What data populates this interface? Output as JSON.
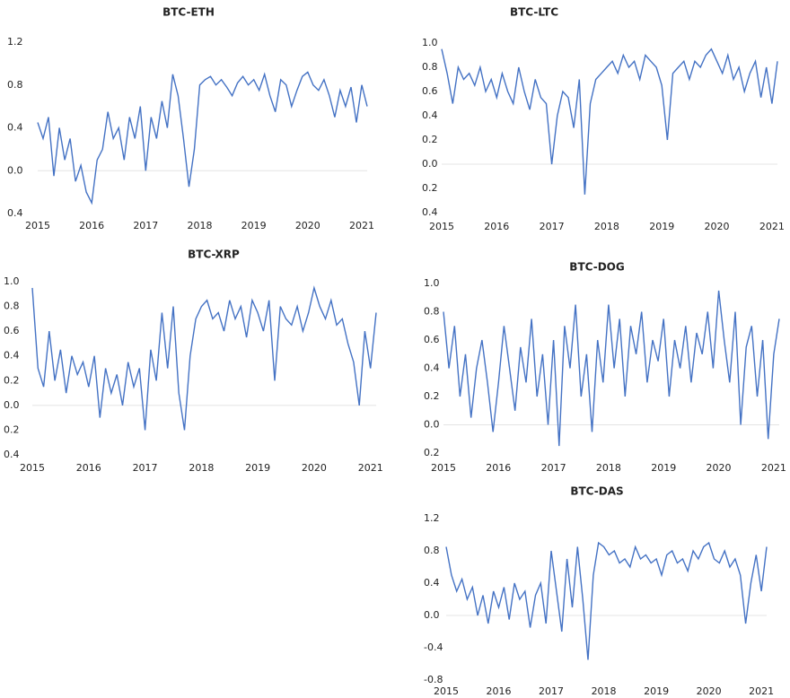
{
  "chart_data": [
    {
      "type": "line",
      "title": "BTC-ETH",
      "color": "#4472c4",
      "x": [
        2015.0,
        2015.1,
        2015.2,
        2015.3,
        2015.4,
        2015.5,
        2015.6,
        2015.7,
        2015.8,
        2015.9,
        2016.0,
        2016.1,
        2016.2,
        2016.3,
        2016.4,
        2016.5,
        2016.6,
        2016.7,
        2016.8,
        2016.9,
        2017.0,
        2017.1,
        2017.2,
        2017.3,
        2017.4,
        2017.5,
        2017.6,
        2017.7,
        2017.8,
        2017.9,
        2018.0,
        2018.1,
        2018.2,
        2018.3,
        2018.4,
        2018.5,
        2018.6,
        2018.7,
        2018.8,
        2018.9,
        2019.0,
        2019.1,
        2019.2,
        2019.3,
        2019.4,
        2019.5,
        2019.6,
        2019.7,
        2019.8,
        2019.9,
        2020.0,
        2020.1,
        2020.2,
        2020.3,
        2020.4,
        2020.5,
        2020.6,
        2020.7,
        2020.8,
        2020.9,
        2021.0,
        2021.1
      ],
      "values": [
        0.45,
        0.3,
        0.5,
        -0.05,
        0.4,
        0.1,
        0.3,
        -0.1,
        0.05,
        -0.2,
        -0.3,
        0.1,
        0.2,
        0.55,
        0.3,
        0.4,
        0.1,
        0.5,
        0.3,
        0.6,
        0.0,
        0.5,
        0.3,
        0.65,
        0.4,
        0.9,
        0.7,
        0.3,
        -0.15,
        0.2,
        0.8,
        0.85,
        0.88,
        0.8,
        0.85,
        0.78,
        0.7,
        0.82,
        0.88,
        0.8,
        0.85,
        0.75,
        0.9,
        0.7,
        0.55,
        0.85,
        0.8,
        0.6,
        0.75,
        0.88,
        0.92,
        0.8,
        0.75,
        0.85,
        0.7,
        0.5,
        0.75,
        0.6,
        0.78,
        0.45,
        0.8,
        0.6
      ],
      "xlim": [
        2015,
        2021.1
      ],
      "xticks": [
        2015,
        2016,
        2017,
        2018,
        2019,
        2020,
        2021
      ],
      "ylim": [
        -0.4,
        1.2
      ],
      "yticks": [
        1.2,
        0.8,
        0.4,
        {
          "value": 0,
          "label": "0.0"
        },
        {
          "value": -0.4,
          "label": "0.4"
        }
      ]
    },
    {
      "type": "line",
      "title": "BTC-LTC",
      "color": "#4472c4",
      "x": [
        2015.0,
        2015.1,
        2015.2,
        2015.3,
        2015.4,
        2015.5,
        2015.6,
        2015.7,
        2015.8,
        2015.9,
        2016.0,
        2016.1,
        2016.2,
        2016.3,
        2016.4,
        2016.5,
        2016.6,
        2016.7,
        2016.8,
        2016.9,
        2017.0,
        2017.1,
        2017.2,
        2017.3,
        2017.4,
        2017.5,
        2017.6,
        2017.7,
        2017.8,
        2017.9,
        2018.0,
        2018.1,
        2018.2,
        2018.3,
        2018.4,
        2018.5,
        2018.6,
        2018.7,
        2018.8,
        2018.9,
        2019.0,
        2019.1,
        2019.2,
        2019.3,
        2019.4,
        2019.5,
        2019.6,
        2019.7,
        2019.8,
        2019.9,
        2020.0,
        2020.1,
        2020.2,
        2020.3,
        2020.4,
        2020.5,
        2020.6,
        2020.7,
        2020.8,
        2020.9,
        2021.0,
        2021.1
      ],
      "values": [
        0.95,
        0.75,
        0.5,
        0.8,
        0.7,
        0.75,
        0.65,
        0.8,
        0.6,
        0.7,
        0.55,
        0.75,
        0.6,
        0.5,
        0.8,
        0.6,
        0.45,
        0.7,
        0.55,
        0.5,
        0.0,
        0.4,
        0.6,
        0.55,
        0.3,
        0.7,
        -0.25,
        0.5,
        0.7,
        0.75,
        0.8,
        0.85,
        0.75,
        0.9,
        0.8,
        0.85,
        0.7,
        0.9,
        0.85,
        0.8,
        0.65,
        0.2,
        0.75,
        0.8,
        0.85,
        0.7,
        0.85,
        0.8,
        0.9,
        0.95,
        0.85,
        0.75,
        0.9,
        0.7,
        0.8,
        0.6,
        0.75,
        0.85,
        0.55,
        0.8,
        0.5,
        0.85
      ],
      "xlim": [
        2015,
        2021.1
      ],
      "xticks": [
        2015,
        2016,
        2017,
        2018,
        2019,
        2020,
        2021
      ],
      "ylim": [
        -0.4,
        1.0
      ],
      "yticks": [
        {
          "value": 1,
          "label": "1.0"
        },
        0.8,
        0.6,
        0.4,
        0.2,
        {
          "value": 0,
          "label": "0.0"
        },
        {
          "value": -0.2,
          "label": "0.2"
        },
        {
          "value": -0.4,
          "label": "0.4"
        }
      ]
    },
    {
      "type": "line",
      "title": "BTC-XRP",
      "color": "#4472c4",
      "x": [
        2015.0,
        2015.1,
        2015.2,
        2015.3,
        2015.4,
        2015.5,
        2015.6,
        2015.7,
        2015.8,
        2015.9,
        2016.0,
        2016.1,
        2016.2,
        2016.3,
        2016.4,
        2016.5,
        2016.6,
        2016.7,
        2016.8,
        2016.9,
        2017.0,
        2017.1,
        2017.2,
        2017.3,
        2017.4,
        2017.5,
        2017.6,
        2017.7,
        2017.8,
        2017.9,
        2018.0,
        2018.1,
        2018.2,
        2018.3,
        2018.4,
        2018.5,
        2018.6,
        2018.7,
        2018.8,
        2018.9,
        2019.0,
        2019.1,
        2019.2,
        2019.3,
        2019.4,
        2019.5,
        2019.6,
        2019.7,
        2019.8,
        2019.9,
        2020.0,
        2020.1,
        2020.2,
        2020.3,
        2020.4,
        2020.5,
        2020.6,
        2020.7,
        2020.8,
        2020.9,
        2021.0,
        2021.1
      ],
      "values": [
        0.95,
        0.3,
        0.15,
        0.6,
        0.2,
        0.45,
        0.1,
        0.4,
        0.25,
        0.35,
        0.15,
        0.4,
        -0.1,
        0.3,
        0.1,
        0.25,
        0.0,
        0.35,
        0.15,
        0.3,
        -0.2,
        0.45,
        0.2,
        0.75,
        0.3,
        0.8,
        0.1,
        -0.2,
        0.4,
        0.7,
        0.8,
        0.85,
        0.7,
        0.75,
        0.6,
        0.85,
        0.7,
        0.8,
        0.55,
        0.85,
        0.75,
        0.6,
        0.85,
        0.2,
        0.8,
        0.7,
        0.65,
        0.8,
        0.6,
        0.75,
        0.95,
        0.8,
        0.7,
        0.85,
        0.65,
        0.7,
        0.5,
        0.35,
        0.0,
        0.6,
        0.3,
        0.75
      ],
      "xlim": [
        2015,
        2021.1
      ],
      "xticks": [
        2015,
        2016,
        2017,
        2018,
        2019,
        2020,
        2021
      ],
      "ylim": [
        -0.4,
        1.0
      ],
      "yticks": [
        {
          "value": 1,
          "label": "1.0"
        },
        0.8,
        0.6,
        0.4,
        0.2,
        {
          "value": 0,
          "label": "0.0"
        },
        {
          "value": -0.2,
          "label": "0.2"
        },
        {
          "value": -0.4,
          "label": "0.4"
        }
      ]
    },
    {
      "type": "line",
      "title": "BTC-DOG",
      "color": "#4472c4",
      "x": [
        2015.0,
        2015.1,
        2015.2,
        2015.3,
        2015.4,
        2015.5,
        2015.6,
        2015.7,
        2015.8,
        2015.9,
        2016.0,
        2016.1,
        2016.2,
        2016.3,
        2016.4,
        2016.5,
        2016.6,
        2016.7,
        2016.8,
        2016.9,
        2017.0,
        2017.1,
        2017.2,
        2017.3,
        2017.4,
        2017.5,
        2017.6,
        2017.7,
        2017.8,
        2017.9,
        2018.0,
        2018.1,
        2018.2,
        2018.3,
        2018.4,
        2018.5,
        2018.6,
        2018.7,
        2018.8,
        2018.9,
        2019.0,
        2019.1,
        2019.2,
        2019.3,
        2019.4,
        2019.5,
        2019.6,
        2019.7,
        2019.8,
        2019.9,
        2020.0,
        2020.1,
        2020.2,
        2020.3,
        2020.4,
        2020.5,
        2020.6,
        2020.7,
        2020.8,
        2020.9,
        2021.0,
        2021.1
      ],
      "values": [
        0.8,
        0.4,
        0.7,
        0.2,
        0.5,
        0.05,
        0.4,
        0.6,
        0.3,
        -0.05,
        0.3,
        0.7,
        0.4,
        0.1,
        0.55,
        0.3,
        0.75,
        0.2,
        0.5,
        0.0,
        0.6,
        -0.15,
        0.7,
        0.4,
        0.85,
        0.2,
        0.5,
        -0.05,
        0.6,
        0.3,
        0.85,
        0.4,
        0.75,
        0.2,
        0.7,
        0.5,
        0.8,
        0.3,
        0.6,
        0.45,
        0.75,
        0.2,
        0.6,
        0.4,
        0.7,
        0.3,
        0.65,
        0.5,
        0.8,
        0.4,
        0.95,
        0.6,
        0.3,
        0.8,
        0.0,
        0.55,
        0.7,
        0.2,
        0.6,
        -0.1,
        0.5,
        0.75
      ],
      "xlim": [
        2015,
        2021.1
      ],
      "xticks": [
        2015,
        2016,
        2017,
        2018,
        2019,
        2020,
        2021
      ],
      "ylim": [
        -0.2,
        1.0
      ],
      "yticks": [
        {
          "value": 1,
          "label": "1.0"
        },
        0.8,
        0.6,
        0.4,
        0.2,
        {
          "value": 0,
          "label": "0.0"
        },
        {
          "value": -0.2,
          "label": "0.2"
        }
      ]
    },
    {
      "type": "line",
      "title": "BTC-DAS",
      "color": "#4472c4",
      "x": [
        2015.0,
        2015.1,
        2015.2,
        2015.3,
        2015.4,
        2015.5,
        2015.6,
        2015.7,
        2015.8,
        2015.9,
        2016.0,
        2016.1,
        2016.2,
        2016.3,
        2016.4,
        2016.5,
        2016.6,
        2016.7,
        2016.8,
        2016.9,
        2017.0,
        2017.1,
        2017.2,
        2017.3,
        2017.4,
        2017.5,
        2017.6,
        2017.7,
        2017.8,
        2017.9,
        2018.0,
        2018.1,
        2018.2,
        2018.3,
        2018.4,
        2018.5,
        2018.6,
        2018.7,
        2018.8,
        2018.9,
        2019.0,
        2019.1,
        2019.2,
        2019.3,
        2019.4,
        2019.5,
        2019.6,
        2019.7,
        2019.8,
        2019.9,
        2020.0,
        2020.1,
        2020.2,
        2020.3,
        2020.4,
        2020.5,
        2020.6,
        2020.7,
        2020.8,
        2020.9,
        2021.0,
        2021.1
      ],
      "values": [
        0.85,
        0.5,
        0.3,
        0.45,
        0.2,
        0.35,
        0.0,
        0.25,
        -0.1,
        0.3,
        0.1,
        0.35,
        -0.05,
        0.4,
        0.2,
        0.3,
        -0.15,
        0.25,
        0.4,
        -0.1,
        0.8,
        0.3,
        -0.2,
        0.7,
        0.1,
        0.85,
        0.2,
        -0.55,
        0.5,
        0.9,
        0.85,
        0.75,
        0.8,
        0.65,
        0.7,
        0.6,
        0.85,
        0.7,
        0.75,
        0.65,
        0.7,
        0.5,
        0.75,
        0.8,
        0.65,
        0.7,
        0.55,
        0.8,
        0.7,
        0.85,
        0.9,
        0.7,
        0.65,
        0.8,
        0.6,
        0.7,
        0.5,
        -0.1,
        0.4,
        0.75,
        0.3,
        0.85
      ],
      "xlim": [
        2015,
        2021.1
      ],
      "xticks": [
        2015,
        2016,
        2017,
        2018,
        2019,
        2020,
        2021
      ],
      "ylim": [
        -0.8,
        1.2
      ],
      "yticks": [
        1.2,
        0.8,
        0.4,
        {
          "value": 0,
          "label": "0.0"
        },
        -0.4,
        -0.8
      ]
    }
  ]
}
